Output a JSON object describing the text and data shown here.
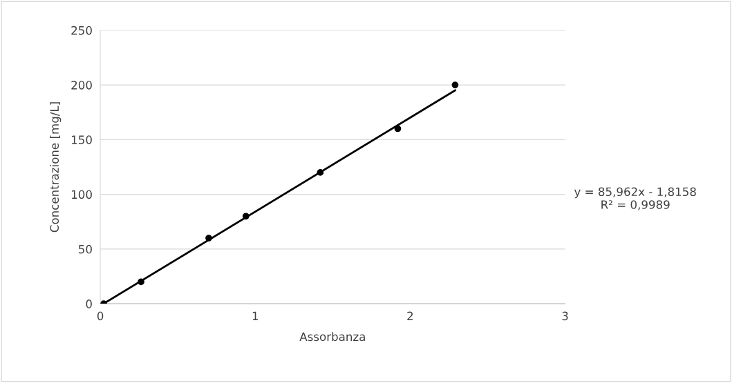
{
  "chart_data": {
    "type": "scatter",
    "xlabel": "Assorbanza",
    "ylabel": "Concentrazione [mg/L]",
    "xlim": [
      0,
      3
    ],
    "xticks": [
      0,
      1,
      2,
      3
    ],
    "ylim": [
      0,
      250
    ],
    "yticks": [
      0,
      50,
      100,
      150,
      200,
      250
    ],
    "grid": "y",
    "marker": "circle",
    "series": [
      {
        "color": "#000000",
        "x": [
          0.022,
          0.263,
          0.7,
          0.94,
          1.42,
          1.92,
          2.29
        ],
        "values": [
          0,
          20,
          60,
          80,
          120,
          160,
          200
        ]
      },
      {
        "type": "line",
        "color": "#000000",
        "line_style": "solid",
        "marker": "none",
        "x": [
          0.022,
          2.29
        ],
        "values": [
          0.1,
          195
        ]
      }
    ],
    "annotations": [
      "y = 85,962x - 1,8158\nR² = 0,9989"
    ]
  }
}
